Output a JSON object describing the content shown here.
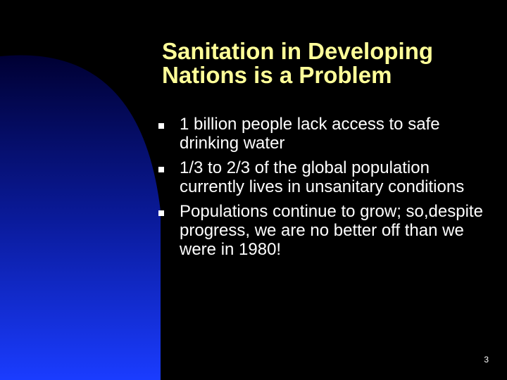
{
  "slide": {
    "title": "Sanitation in Developing Nations is a Problem",
    "bullets": [
      "1 billion people lack access to safe drinking water",
      "1/3 to 2/3 of the global population currently lives in unsanitary conditions",
      "Populations continue to grow; so,despite progress, we are no better off than we were in 1980!"
    ],
    "page_number": "3"
  }
}
